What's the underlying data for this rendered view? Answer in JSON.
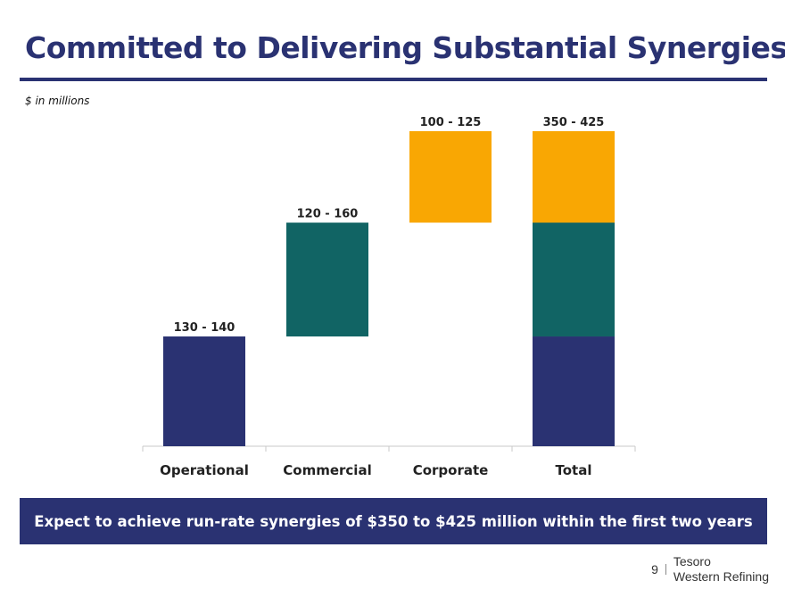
{
  "title": "Committed to Delivering Substantial Synergies",
  "subtitle": "$ in millions",
  "chart_data": {
    "type": "bar",
    "subtype": "waterfall",
    "categories": [
      "Operational",
      "Commercial",
      "Corporate",
      "Total"
    ],
    "segments": [
      {
        "category": "Operational",
        "label": "130 - 140",
        "start": 0,
        "end": 135,
        "color": "#2a3272"
      },
      {
        "category": "Commercial",
        "label": "120 - 160",
        "start": 135,
        "end": 275,
        "color": "#116464"
      },
      {
        "category": "Corporate",
        "label": "100 - 125",
        "start": 275,
        "end": 387.5,
        "color": "#f9a703"
      },
      {
        "category": "Total",
        "label": "350 - 425",
        "start": 0,
        "end": 387.5,
        "color": null,
        "stack": [
          {
            "start": 0,
            "end": 135,
            "color": "#2a3272"
          },
          {
            "start": 135,
            "end": 275,
            "color": "#116464"
          },
          {
            "start": 275,
            "end": 387.5,
            "color": "#f9a703"
          }
        ]
      }
    ],
    "ylim": [
      0,
      387.5
    ],
    "grid": false,
    "xlabel": "",
    "ylabel": ""
  },
  "banner_text": "Expect to achieve run-rate synergies of $350 to $425 million within the first two years",
  "footer": {
    "page_number": "9",
    "brand_line1": "Tesoro",
    "brand_line2": "Western Refining"
  }
}
